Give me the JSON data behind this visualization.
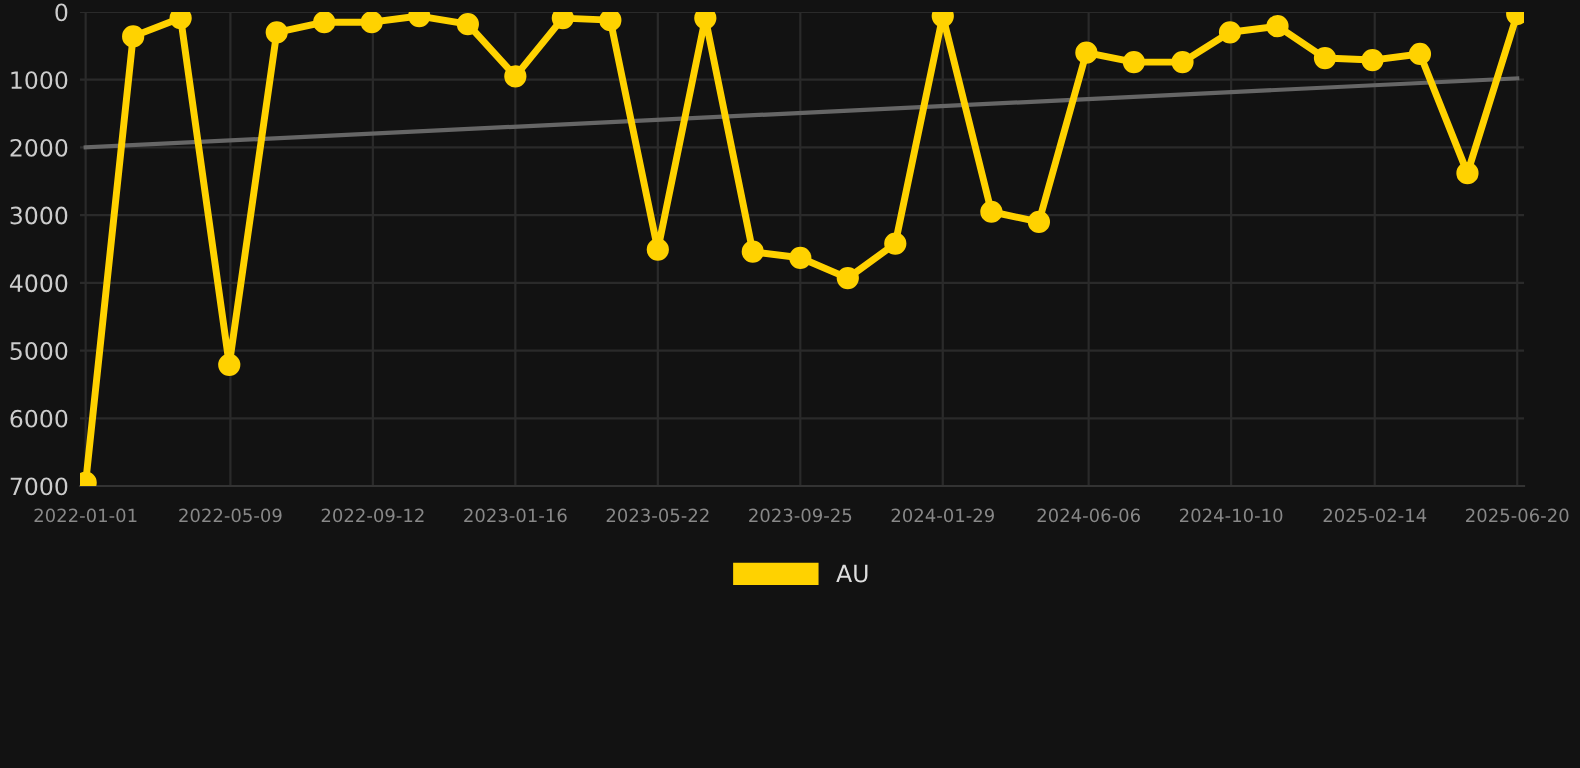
{
  "chart_data": {
    "type": "line",
    "x": [
      "2022-01-01",
      "2022-02-12",
      "2022-03-26",
      "2022-05-08",
      "2022-06-19",
      "2022-07-31",
      "2022-09-11",
      "2022-10-23",
      "2022-12-05",
      "2023-01-16",
      "2023-02-27",
      "2023-04-10",
      "2023-05-22",
      "2023-07-03",
      "2023-08-14",
      "2023-09-25",
      "2023-11-06",
      "2023-12-18",
      "2024-01-29",
      "2024-03-12",
      "2024-04-23",
      "2024-06-04",
      "2024-07-16",
      "2024-08-28",
      "2024-10-09",
      "2024-11-20",
      "2025-01-01",
      "2025-02-12",
      "2025-03-26",
      "2025-05-07",
      "2025-06-20"
    ],
    "series": [
      {
        "name": "AU",
        "color": "#ffd200",
        "marker": "circle",
        "values": [
          6950,
          360,
          90,
          5210,
          300,
          150,
          150,
          60,
          180,
          950,
          90,
          120,
          3510,
          90,
          3540,
          3630,
          3930,
          3420,
          60,
          2950,
          3100,
          600,
          740,
          740,
          300,
          210,
          680,
          710,
          620,
          2380,
          30
        ]
      },
      {
        "type": "line",
        "color": "#666666",
        "marker": "none",
        "x": [
          "2022-01-01",
          "2025-06-20"
        ],
        "values": [
          2000,
          980
        ]
      }
    ],
    "ylim": [
      7000,
      0
    ],
    "yticks": [
      0,
      1000,
      2000,
      3000,
      4000,
      5000,
      6000,
      7000
    ],
    "xlim": [
      "2021-12-27",
      "2025-06-26"
    ],
    "xticks": [
      {
        "value": "2022-01-01",
        "label": "2022-01-01"
      },
      {
        "value": "2022-05-09",
        "label": "2022-05-09"
      },
      {
        "value": "2022-09-12",
        "label": "2022-09-12"
      },
      {
        "value": "2023-01-16",
        "label": "2023-01-16"
      },
      {
        "value": "2023-05-22",
        "label": "2023-05-22"
      },
      {
        "value": "2023-09-25",
        "label": "2023-09-25"
      },
      {
        "value": "2024-01-29",
        "label": "2024-01-29"
      },
      {
        "value": "2024-06-06",
        "label": "2024-06-06"
      },
      {
        "value": "2024-10-10",
        "label": "2024-10-10"
      },
      {
        "value": "2025-02-14",
        "label": "2025-02-14"
      },
      {
        "value": "2025-06-20",
        "label": "2025-06-20"
      }
    ],
    "grid": true,
    "legend": "bottom"
  }
}
